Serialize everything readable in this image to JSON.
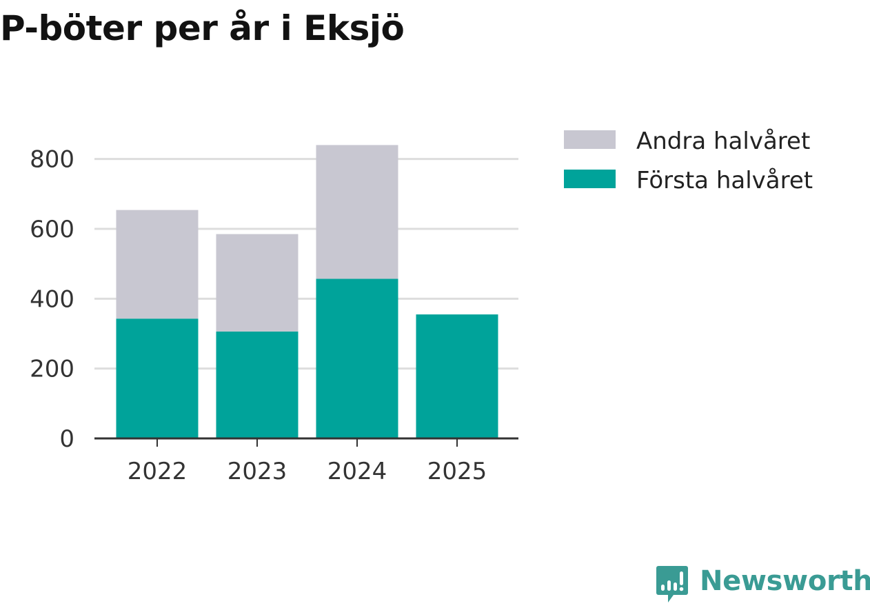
{
  "chart_data": {
    "type": "bar",
    "stacked": true,
    "title": "P-böter per år i Eksjö",
    "categories": [
      "2022",
      "2023",
      "2024",
      "2025"
    ],
    "series": [
      {
        "name": "Första halvåret",
        "color": "#00a39a",
        "values": [
          343,
          306,
          457,
          355
        ]
      },
      {
        "name": "Andra halvåret",
        "color": "#c8c7d1",
        "values": [
          311,
          279,
          383,
          0
        ]
      }
    ],
    "yticks": [
      0,
      200,
      400,
      600,
      800
    ],
    "ylim": [
      0,
      900
    ],
    "xlabel": "",
    "ylabel": "",
    "grid": true,
    "legend": [
      "Andra halvåret",
      "Första halvåret"
    ],
    "legend_position": "right"
  },
  "brand": {
    "name": "Newsworthy",
    "icon": "newsworthy-logo-icon",
    "color": "#3a9b94"
  }
}
